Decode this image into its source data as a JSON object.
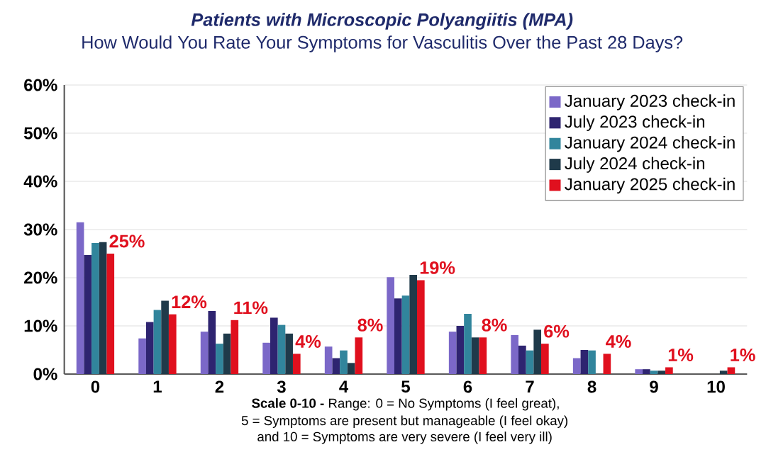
{
  "chart_data": {
    "type": "bar",
    "title": "*Patients with Microscopic Polyangiitis (MPA)*",
    "subtitle": "How Would You Rate Your Symptoms for Vasculitis Over the Past 28 Days?",
    "xlabel": "**Scale 0-10 -** Range: 0 = No Symptoms  (I feel great),",
    "annotations": [
      "5 = Symptoms  are present but manageable (I feel okay)",
      "and 10 = Symptoms are very severe (I feel very ill)"
    ],
    "categories": [
      "0",
      "1",
      "2",
      "3",
      "4",
      "5",
      "6",
      "7",
      "8",
      "9",
      "10"
    ],
    "series": [
      {
        "name": "January 2023 check-in",
        "color": "#7b68c8",
        "values": [
          31.5,
          7.4,
          8.8,
          6.5,
          5.7,
          20.1,
          8.8,
          8.1,
          3.3,
          1.0,
          null
        ]
      },
      {
        "name": "July 2023 check-in",
        "color": "#2e2470",
        "values": [
          24.7,
          10.8,
          13.1,
          11.7,
          3.3,
          15.7,
          10.0,
          5.9,
          5.0,
          1.0,
          null
        ]
      },
      {
        "name": "January 2024 check-in",
        "color": "#31859c",
        "values": [
          27.2,
          13.3,
          6.3,
          10.2,
          4.9,
          16.3,
          12.5,
          4.9,
          4.9,
          0.7,
          null
        ]
      },
      {
        "name": "July 2024 check-in",
        "color": "#1f3a4a",
        "values": [
          27.4,
          15.2,
          8.4,
          8.4,
          2.3,
          20.6,
          7.6,
          9.2,
          null,
          0.7,
          0.7
        ]
      },
      {
        "name": "January 2025 check-in",
        "color": "#e0101e",
        "values": [
          25.0,
          12.4,
          11.2,
          4.2,
          7.6,
          19.5,
          7.6,
          6.3,
          4.2,
          1.4,
          1.4
        ],
        "value_labels": [
          "25%",
          "12%",
          "11%",
          "4%",
          "8%",
          "19%",
          "8%",
          "6%",
          "4%",
          "1%",
          "1%"
        ]
      }
    ],
    "ylim": [
      0,
      60
    ],
    "yticks": [
      {
        "value": 0,
        "label": "0%"
      },
      {
        "value": 10,
        "label": "10%"
      },
      {
        "value": 20,
        "label": "20%"
      },
      {
        "value": 30,
        "label": "30%"
      },
      {
        "value": 40,
        "label": "40%"
      },
      {
        "value": 50,
        "label": "50%"
      },
      {
        "value": 60,
        "label": "60%"
      }
    ],
    "grid": "y",
    "legend": "top right"
  }
}
